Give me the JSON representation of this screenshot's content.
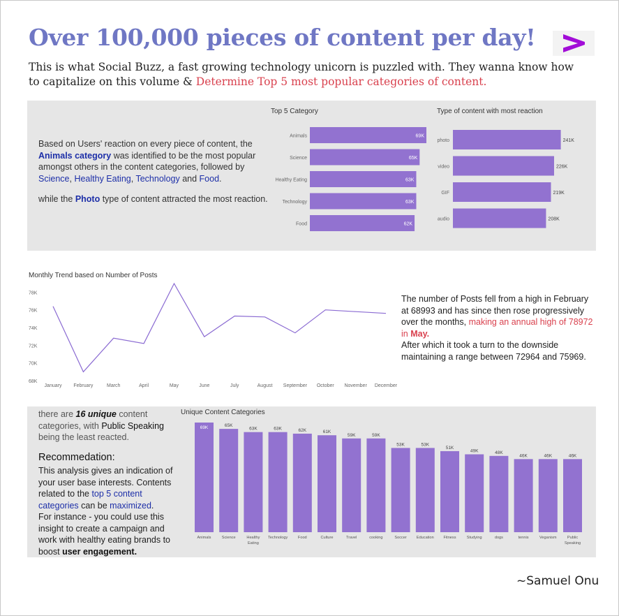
{
  "header": {
    "title": "Over 100,000 pieces of content per day!",
    "subtitle_part1": "This is what Social Buzz, a fast growing technology unicorn is puzzled with. They wanna know how to capitalize on this volume & ",
    "subtitle_highlight": "Determine Top 5 most popular categories of content."
  },
  "summary": {
    "line1": "Based on Users' reaction on every piece of content, the ",
    "animals": "Animals category",
    "line2": " was identified to be the most popular amongst others in the content categories, followed by ",
    "science": "Science",
    "comma1": ", ",
    "healthy": "Healthy Eating",
    "comma2": ", ",
    "technology": "Technology",
    "and": " and ",
    "food": "Food",
    "period": ".",
    "photo_pre": "while the ",
    "photo": "Photo",
    "photo_post": " type of content attracted the most reaction."
  },
  "trend_text": {
    "p1": "The number of Posts fell from a high in February at 68993 and has since then rose progressively over the months, ",
    "p1_red": "making an annual high of 78972 in ",
    "p1_red_bold": "May.",
    "p2": "After which it took a turn to the downside maintaining a range between 72964 and 75969."
  },
  "reco": {
    "unique_pre": "there are ",
    "unique_num": "16 unique",
    "unique_mid": " content categories, with ",
    "public": "Public Speaking",
    "unique_post": " being the least reacted.",
    "heading": "Recommedation:",
    "r1": "This analysis gives an indication of your user base interests. Contents related to the ",
    "r_blue1": "top 5 content categories",
    "r2": " can be ",
    "r_blue2": "maximized",
    "r3": ".",
    "r4": "For instance - you could use this insight to create a campaign and work with healthy eating brands to boost ",
    "r_bold": "user engagement."
  },
  "signature": "~Samuel Onu",
  "colors": {
    "bar": "#9272d0",
    "line": "#8a6ad2",
    "title": "#6f77c4",
    "logo": "#a20dd8"
  },
  "icons": {
    "logo": "accenture-greater-than-logo"
  },
  "chart_data": [
    {
      "type": "bar",
      "orientation": "horizontal",
      "title": "Top 5 Category",
      "categories": [
        "Animals",
        "Science",
        "Healthy Eating",
        "Technology",
        "Food"
      ],
      "values": [
        69,
        65,
        63,
        63,
        62
      ],
      "labels": [
        "69K",
        "65K",
        "63K",
        "63K",
        "62K"
      ],
      "xlim": [
        0,
        69
      ]
    },
    {
      "type": "bar",
      "orientation": "horizontal",
      "title": "Type of content with most reaction",
      "categories": [
        "photo",
        "video",
        "GIF",
        "audio"
      ],
      "values": [
        241,
        226,
        219,
        208
      ],
      "labels": [
        "241K",
        "226K",
        "219K",
        "208K"
      ],
      "xlim": [
        0,
        265
      ]
    },
    {
      "type": "line",
      "title": "Monthly Trend based on Number of Posts",
      "x": [
        "January",
        "February",
        "March",
        "April",
        "May",
        "June",
        "July",
        "August",
        "September",
        "October",
        "November",
        "December"
      ],
      "values": [
        76.4,
        68.993,
        72.8,
        72.2,
        78.972,
        72.964,
        75.3,
        75.2,
        73.4,
        76.0,
        75.8,
        75.6
      ],
      "yticks": [
        "68K",
        "70K",
        "72K",
        "74K",
        "76K",
        "78K"
      ],
      "ylim": [
        68,
        78.972
      ]
    },
    {
      "type": "bar",
      "title": "Unique Content Categories",
      "categories": [
        "Animals",
        "Science",
        "Healthy Eating",
        "Technology",
        "Food",
        "Culture",
        "Travel",
        "cooking",
        "Soccer",
        "Education",
        "Fitness",
        "Studying",
        "dogs",
        "tennis",
        "Veganism",
        "Public Speaking"
      ],
      "values": [
        69,
        65,
        63,
        63,
        62,
        61,
        59,
        59,
        53,
        53,
        51,
        49,
        48,
        46,
        46,
        46
      ],
      "labels": [
        "69K",
        "65K",
        "63K",
        "63K",
        "62K",
        "61K",
        "59K",
        "59K",
        "53K",
        "53K",
        "51K",
        "49K",
        "48K",
        "46K",
        "46K",
        "46K"
      ],
      "ylim": [
        0,
        69
      ]
    }
  ]
}
